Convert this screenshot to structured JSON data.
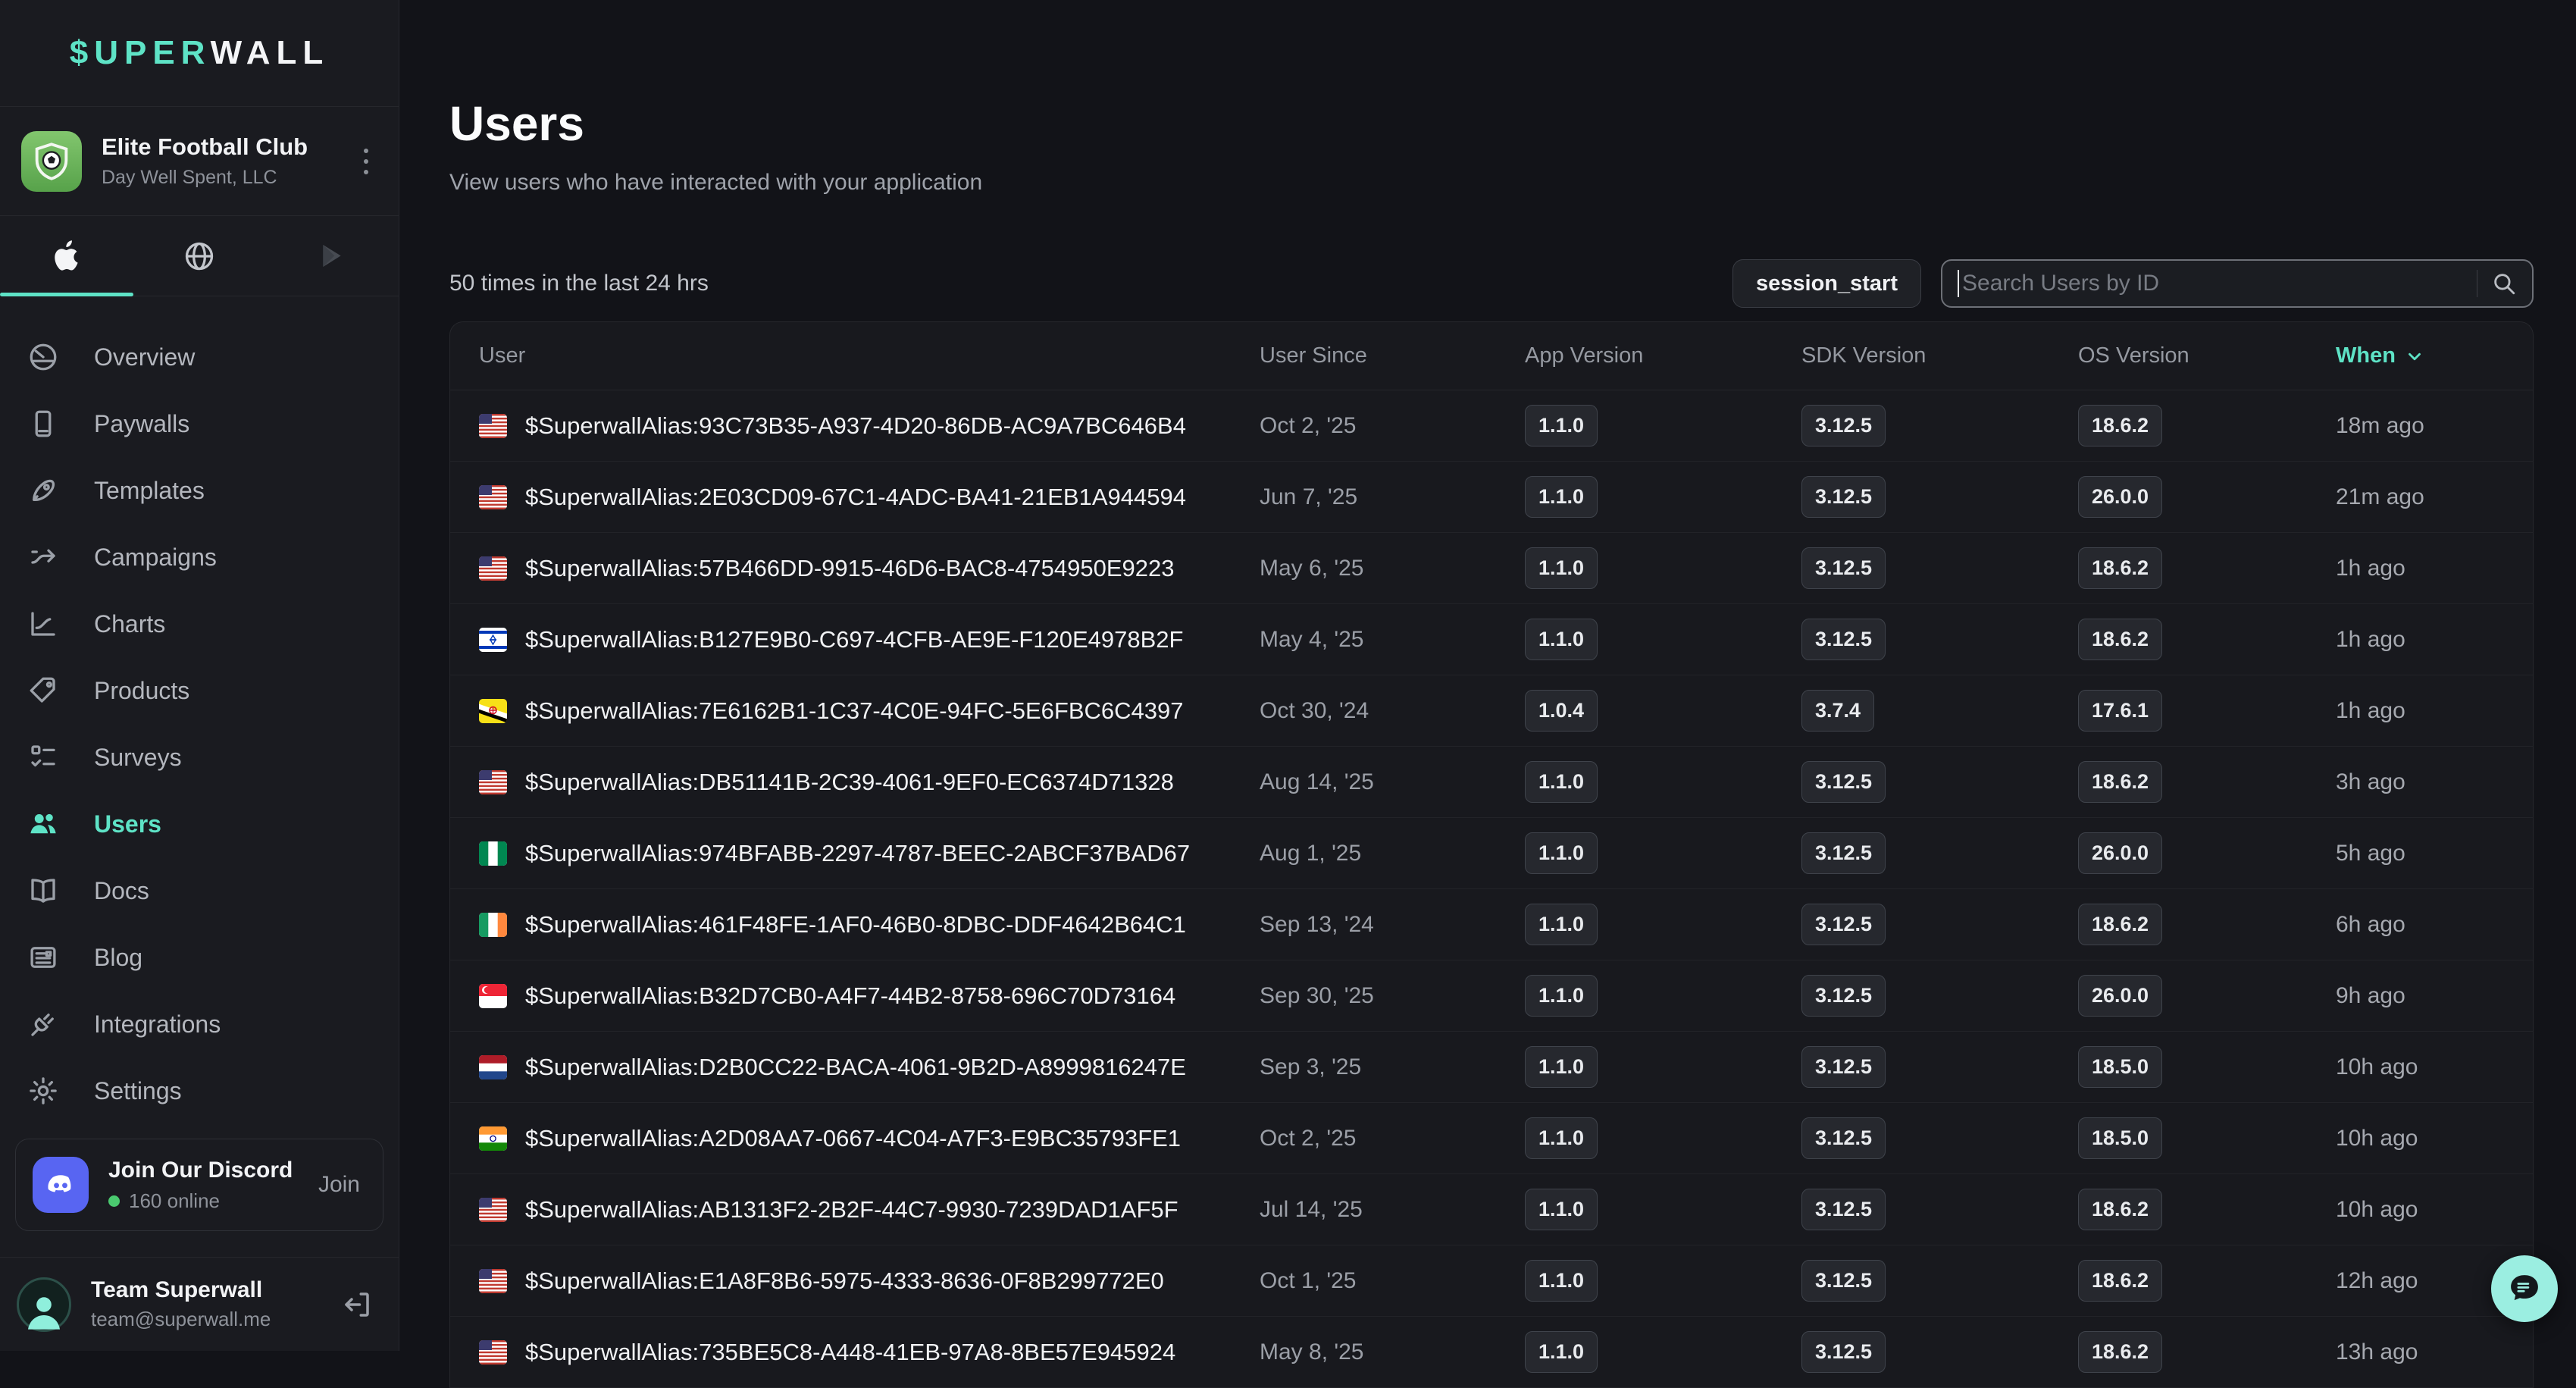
{
  "accent_color": "#5EE3C6",
  "sidebar": {
    "logo": {
      "part_teal": "$UPER",
      "part_white": "WALL"
    },
    "workspace": {
      "name": "Elite Football Club",
      "org": "Day Well Spent, LLC"
    },
    "platform_tabs": [
      {
        "icon": "apple-logo",
        "active": true
      },
      {
        "icon": "globe",
        "active": false
      },
      {
        "icon": "google-play",
        "active": false
      }
    ],
    "nav": [
      {
        "label": "Overview",
        "icon": "overview",
        "active": false
      },
      {
        "label": "Paywalls",
        "icon": "paywalls",
        "active": false
      },
      {
        "label": "Templates",
        "icon": "templates",
        "active": false
      },
      {
        "label": "Campaigns",
        "icon": "campaigns",
        "active": false
      },
      {
        "label": "Charts",
        "icon": "charts",
        "active": false
      },
      {
        "label": "Products",
        "icon": "products",
        "active": false
      },
      {
        "label": "Surveys",
        "icon": "surveys",
        "active": false
      },
      {
        "label": "Users",
        "icon": "users",
        "active": true
      },
      {
        "label": "Docs",
        "icon": "docs",
        "active": false
      },
      {
        "label": "Blog",
        "icon": "blog",
        "active": false
      },
      {
        "label": "Integrations",
        "icon": "integrations",
        "active": false
      },
      {
        "label": "Settings",
        "icon": "settings",
        "active": false
      }
    ],
    "discord": {
      "title": "Join Our Discord",
      "online": "160 online",
      "action": "Join",
      "brand_color": "#5865F2",
      "dot_color": "#4ACA6F"
    },
    "account": {
      "name": "Team Superwall",
      "email": "team@superwall.me"
    }
  },
  "main": {
    "title": "Users",
    "subtitle": "View users who have interacted with your application",
    "stats": "50 times in the last 24 hrs",
    "event_filter": "session_start",
    "search_placeholder": "Search Users by ID",
    "table": {
      "columns": [
        "User",
        "User Since",
        "App Version",
        "SDK Version",
        "OS Version",
        "When"
      ],
      "sort_column": "When",
      "rows": [
        {
          "flag": "us",
          "id": "$SuperwallAlias:93C73B35-A937-4D20-86DB-AC9A7BC646B4",
          "since": "Oct 2, '25",
          "app": "1.1.0",
          "sdk": "3.12.5",
          "os": "18.6.2",
          "when": "18m ago"
        },
        {
          "flag": "us",
          "id": "$SuperwallAlias:2E03CD09-67C1-4ADC-BA41-21EB1A944594",
          "since": "Jun 7, '25",
          "app": "1.1.0",
          "sdk": "3.12.5",
          "os": "26.0.0",
          "when": "21m ago"
        },
        {
          "flag": "us",
          "id": "$SuperwallAlias:57B466DD-9915-46D6-BAC8-4754950E9223",
          "since": "May 6, '25",
          "app": "1.1.0",
          "sdk": "3.12.5",
          "os": "18.6.2",
          "when": "1h ago"
        },
        {
          "flag": "il",
          "id": "$SuperwallAlias:B127E9B0-C697-4CFB-AE9E-F120E4978B2F",
          "since": "May 4, '25",
          "app": "1.1.0",
          "sdk": "3.12.5",
          "os": "18.6.2",
          "when": "1h ago"
        },
        {
          "flag": "bn",
          "id": "$SuperwallAlias:7E6162B1-1C37-4C0E-94FC-5E6FBC6C4397",
          "since": "Oct 30, '24",
          "app": "1.0.4",
          "sdk": "3.7.4",
          "os": "17.6.1",
          "when": "1h ago"
        },
        {
          "flag": "us",
          "id": "$SuperwallAlias:DB51141B-2C39-4061-9EF0-EC6374D71328",
          "since": "Aug 14, '25",
          "app": "1.1.0",
          "sdk": "3.12.5",
          "os": "18.6.2",
          "when": "3h ago"
        },
        {
          "flag": "ng",
          "id": "$SuperwallAlias:974BFABB-2297-4787-BEEC-2ABCF37BAD67",
          "since": "Aug 1, '25",
          "app": "1.1.0",
          "sdk": "3.12.5",
          "os": "26.0.0",
          "when": "5h ago"
        },
        {
          "flag": "ie",
          "id": "$SuperwallAlias:461F48FE-1AF0-46B0-8DBC-DDF4642B64C1",
          "since": "Sep 13, '24",
          "app": "1.1.0",
          "sdk": "3.12.5",
          "os": "18.6.2",
          "when": "6h ago"
        },
        {
          "flag": "sg",
          "id": "$SuperwallAlias:B32D7CB0-A4F7-44B2-8758-696C70D73164",
          "since": "Sep 30, '25",
          "app": "1.1.0",
          "sdk": "3.12.5",
          "os": "26.0.0",
          "when": "9h ago"
        },
        {
          "flag": "nl",
          "id": "$SuperwallAlias:D2B0CC22-BACA-4061-9B2D-A8999816247E",
          "since": "Sep 3, '25",
          "app": "1.1.0",
          "sdk": "3.12.5",
          "os": "18.5.0",
          "when": "10h ago"
        },
        {
          "flag": "in",
          "id": "$SuperwallAlias:A2D08AA7-0667-4C04-A7F3-E9BC35793FE1",
          "since": "Oct 2, '25",
          "app": "1.1.0",
          "sdk": "3.12.5",
          "os": "18.5.0",
          "when": "10h ago"
        },
        {
          "flag": "us",
          "id": "$SuperwallAlias:AB1313F2-2B2F-44C7-9930-7239DAD1AF5F",
          "since": "Jul 14, '25",
          "app": "1.1.0",
          "sdk": "3.12.5",
          "os": "18.6.2",
          "when": "10h ago"
        },
        {
          "flag": "us",
          "id": "$SuperwallAlias:E1A8F8B6-5975-4333-8636-0F8B299772E0",
          "since": "Oct 1, '25",
          "app": "1.1.0",
          "sdk": "3.12.5",
          "os": "18.6.2",
          "when": "12h ago"
        },
        {
          "flag": "us",
          "id": "$SuperwallAlias:735BE5C8-A448-41EB-97A8-8BE57E945924",
          "since": "May 8, '25",
          "app": "1.1.0",
          "sdk": "3.12.5",
          "os": "18.6.2",
          "when": "13h ago"
        }
      ]
    }
  }
}
